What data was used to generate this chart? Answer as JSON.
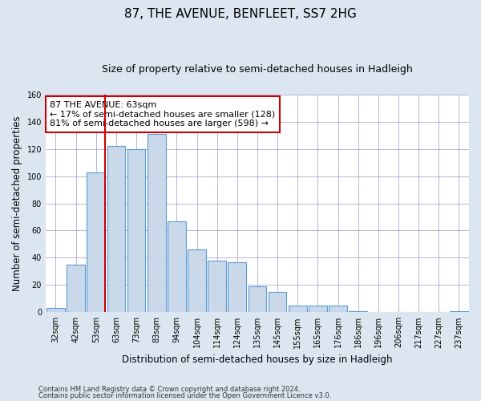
{
  "title": "87, THE AVENUE, BENFLEET, SS7 2HG",
  "subtitle": "Size of property relative to semi-detached houses in Hadleigh",
  "xlabel": "Distribution of semi-detached houses by size in Hadleigh",
  "ylabel": "Number of semi-detached properties",
  "footnote1": "Contains HM Land Registry data © Crown copyright and database right 2024.",
  "footnote2": "Contains public sector information licensed under the Open Government Licence v3.0.",
  "categories": [
    "32sqm",
    "42sqm",
    "53sqm",
    "63sqm",
    "73sqm",
    "83sqm",
    "94sqm",
    "104sqm",
    "114sqm",
    "124sqm",
    "135sqm",
    "145sqm",
    "155sqm",
    "165sqm",
    "176sqm",
    "186sqm",
    "196sqm",
    "206sqm",
    "217sqm",
    "227sqm",
    "237sqm"
  ],
  "values": [
    3,
    35,
    103,
    122,
    120,
    131,
    67,
    46,
    38,
    37,
    19,
    15,
    5,
    5,
    5,
    1,
    0,
    0,
    0,
    0,
    1
  ],
  "bar_color": "#c9d9ea",
  "bar_edge_color": "#5b9bd5",
  "property_line_idx": 2,
  "annotation_text": "87 THE AVENUE: 63sqm\n← 17% of semi-detached houses are smaller (128)\n81% of semi-detached houses are larger (598) →",
  "annotation_box_color": "#ffffff",
  "annotation_box_edge_color": "#cc0000",
  "vline_color": "#cc0000",
  "ylim": [
    0,
    160
  ],
  "yticks": [
    0,
    20,
    40,
    60,
    80,
    100,
    120,
    140,
    160
  ],
  "grid_color": "#aaaacc",
  "background_color": "#dce6f1",
  "plot_bg_color": "#ffffff",
  "title_fontsize": 11,
  "subtitle_fontsize": 9,
  "axis_label_fontsize": 8.5,
  "tick_fontsize": 7,
  "annotation_fontsize": 8
}
